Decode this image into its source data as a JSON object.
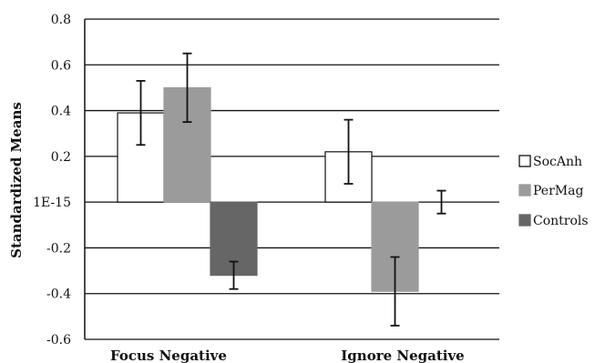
{
  "chart_data": {
    "type": "bar",
    "ylabel": "Standardized Means",
    "categories": [
      "Focus Negative",
      "Ignore Negative"
    ],
    "ylim": [
      -0.6,
      0.8
    ],
    "y_ticks": [
      0.8,
      0.6,
      0.4,
      0.2,
      0,
      -0.2,
      -0.4,
      -0.6
    ],
    "y_tick_labels": [
      "0.8",
      "0.6",
      "0.4",
      "0.2",
      "1E-15",
      "-0.2",
      "-0.4",
      "-0.6"
    ],
    "grid": true,
    "legend_position": "right",
    "series": [
      {
        "name": "SocAnh",
        "values": [
          0.39,
          0.22
        ],
        "error_low": [
          0.25,
          0.08
        ],
        "error_high": [
          0.53,
          0.36
        ],
        "color": "#ffffff",
        "stroke": "#111111"
      },
      {
        "name": "PerMag",
        "values": [
          0.5,
          -0.39
        ],
        "error_low": [
          0.35,
          -0.54
        ],
        "error_high": [
          0.65,
          -0.24
        ],
        "color": "#9b9b9b",
        "stroke": "#9b9b9b"
      },
      {
        "name": "Controls",
        "values": [
          -0.32,
          -0.0
        ],
        "error_low": [
          -0.38,
          -0.05
        ],
        "error_high": [
          -0.26,
          0.05
        ],
        "color": "#666666",
        "stroke": "#666666"
      }
    ]
  }
}
